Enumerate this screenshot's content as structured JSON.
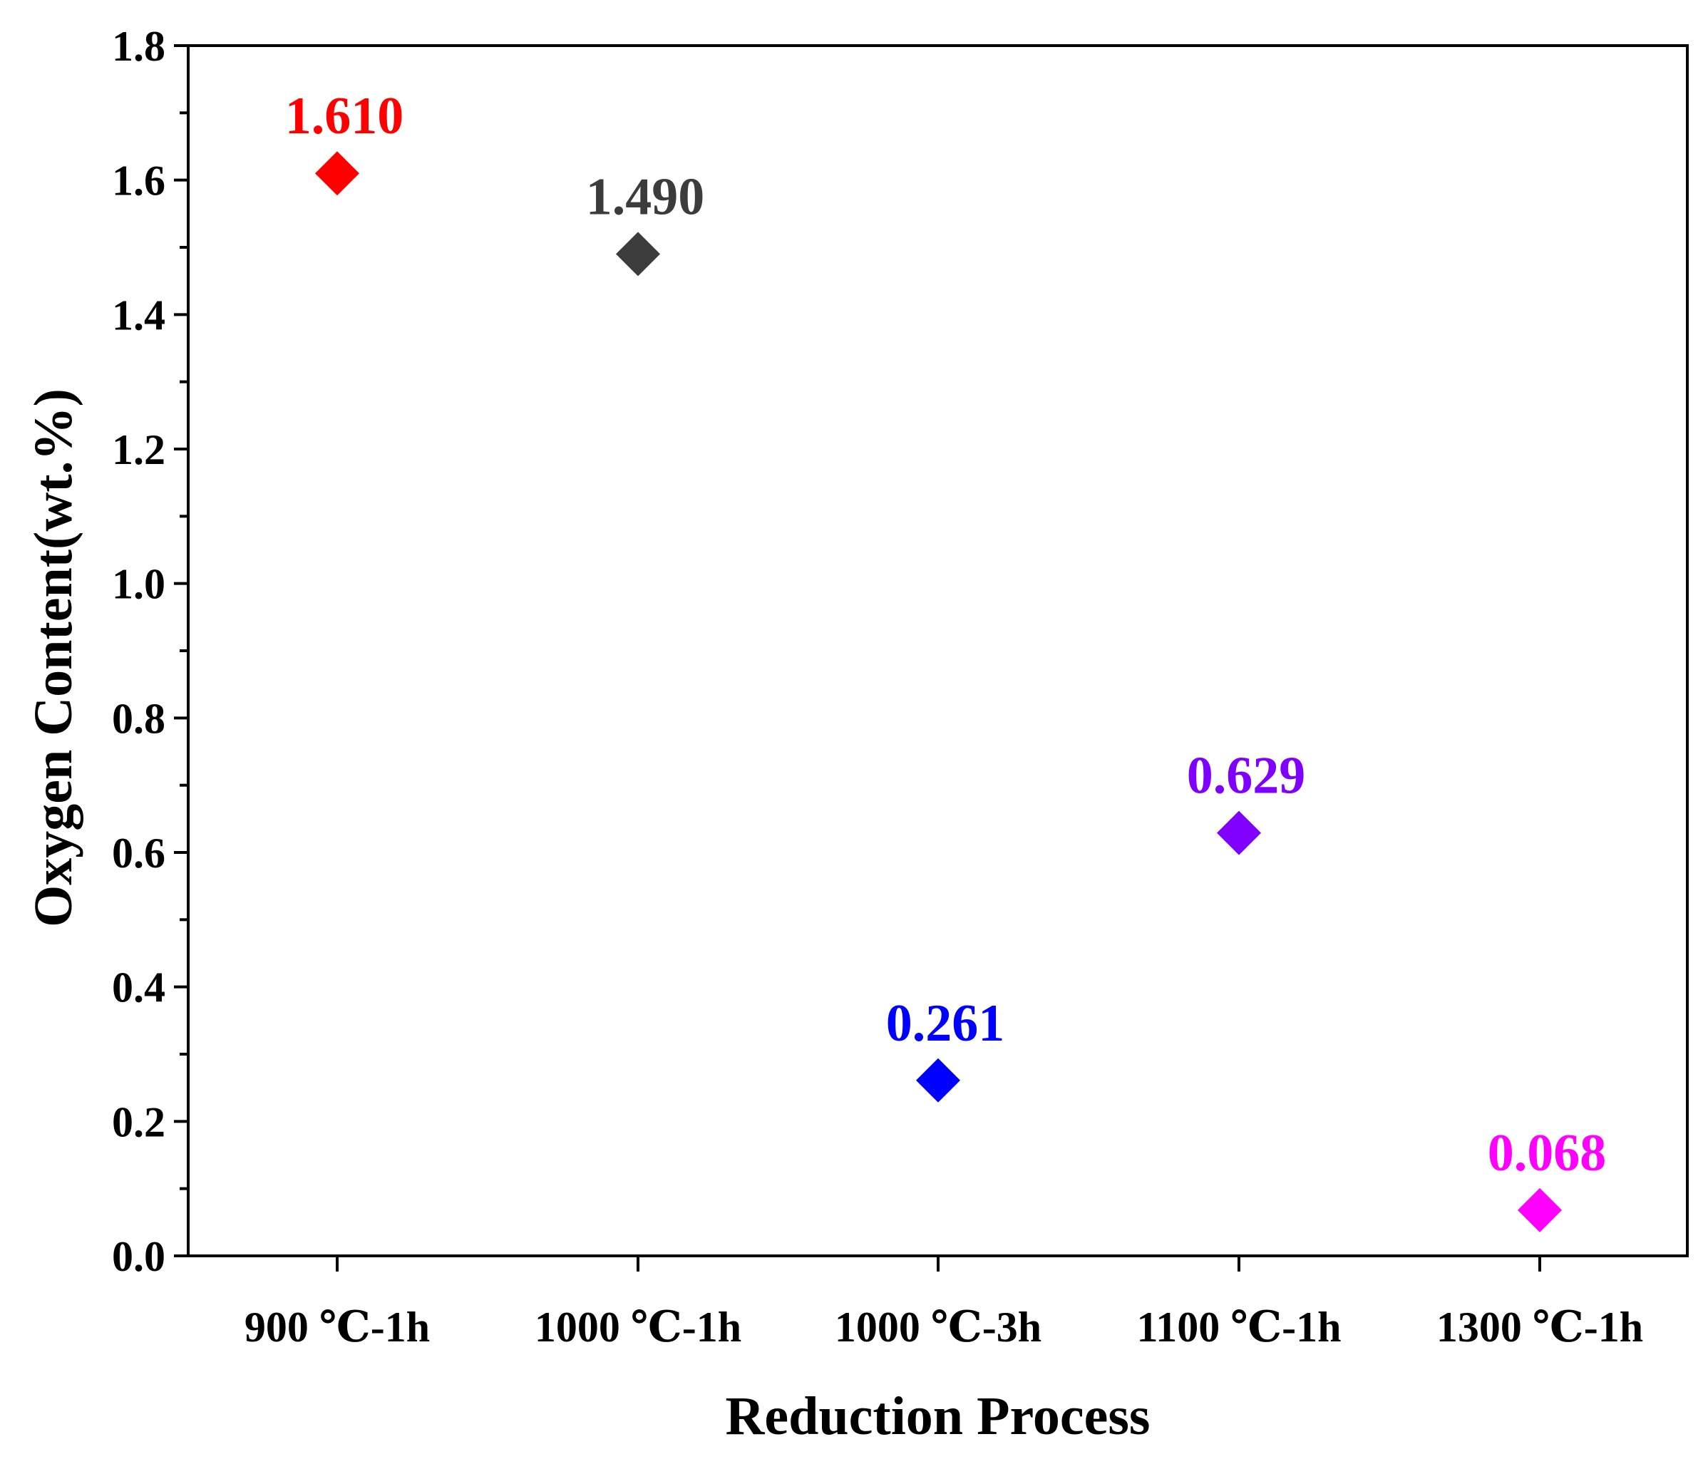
{
  "chart_data": {
    "type": "scatter",
    "title": "",
    "xlabel": "Reduction Process",
    "ylabel": "Oxygen Content(wt.%)",
    "ylim": [
      0.0,
      1.8
    ],
    "yticks": [
      "0.0",
      "0.2",
      "0.4",
      "0.6",
      "0.8",
      "1.0",
      "1.2",
      "1.4",
      "1.6",
      "1.8"
    ],
    "grid": false,
    "marker": "diamond",
    "categories": [
      "900 ℃-1h",
      "1000 ℃-1h",
      "1000 ℃-3h",
      "1100 ℃-1h",
      "1300 ℃-1h"
    ],
    "values": [
      1.61,
      1.49,
      0.261,
      0.629,
      0.068
    ],
    "labels": [
      "1.610",
      "1.490",
      "0.261",
      "0.629",
      "0.068"
    ],
    "colors": [
      "#ff0000",
      "#3c3c3c",
      "#0000ff",
      "#8000ff",
      "#ff00ff"
    ]
  }
}
